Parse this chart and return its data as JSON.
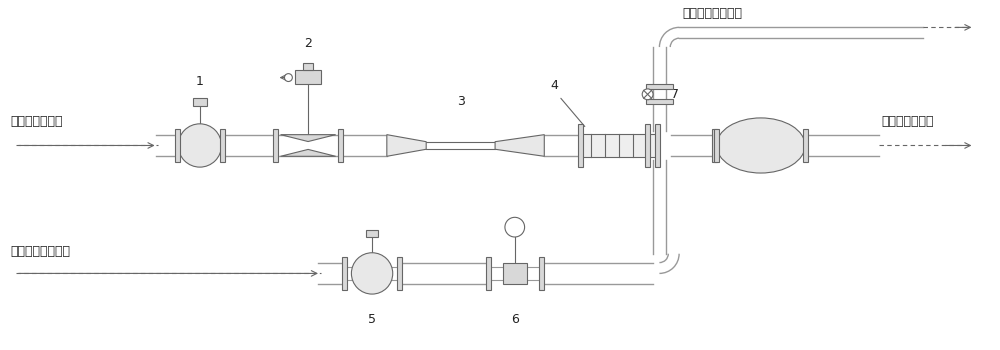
{
  "bg_color": "#ffffff",
  "lc": "#999999",
  "dc": "#666666",
  "fc": "#e8e8e8",
  "fc2": "#d8d8d8",
  "text_color": "#222222",
  "labels": {
    "inlet_main": "流场主蕊汽入口",
    "outlet_main": "流场主蕊汽出口",
    "inlet_heat": "加热除湿蕊汽入口",
    "outlet_heat": "加热除湿蕊汽出口",
    "n1": "1",
    "n2": "2",
    "n3": "3",
    "n4": "4",
    "n5": "5",
    "n6": "6",
    "n7": "7"
  },
  "my": 2.05,
  "hy": 0.75,
  "ph": 0.11,
  "vpx": 6.62
}
